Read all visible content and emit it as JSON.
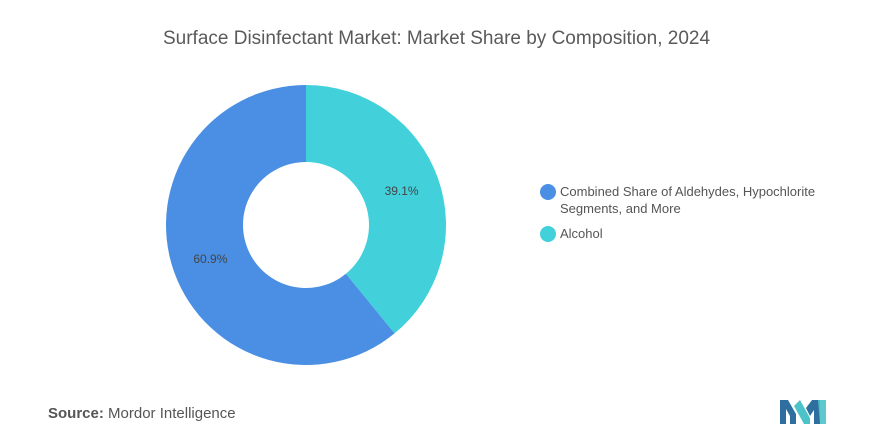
{
  "title": "Surface Disinfectant Market: Market Share by Composition, 2024",
  "chart_data": {
    "type": "pie",
    "subtype": "donut",
    "title": "Surface Disinfectant Market: Market Share by Composition, 2024",
    "start_angle_deg": 0,
    "direction": "clockwise",
    "slices": [
      {
        "label": "Alcohol",
        "value": 39.1,
        "display": "39.1%",
        "color": "#42d1db"
      },
      {
        "label": "Combined Share of Aldehydes, Hypochlorite Segments, and More",
        "value": 60.9,
        "display": "60.9%",
        "color": "#4a8fe3"
      }
    ],
    "legend": {
      "position": "right",
      "items": [
        {
          "label": "Combined Share of Aldehydes, Hypochlorite Segments, and More",
          "color": "#4a8fe3"
        },
        {
          "label": "Alcohol",
          "color": "#42d1db"
        }
      ]
    }
  },
  "source": {
    "prefix": "Source:",
    "text": "Mordor Intelligence"
  },
  "logo": {
    "icon": "mordor-intelligence-logo",
    "colors": [
      "#2f6fa0",
      "#4cc3c8"
    ]
  }
}
